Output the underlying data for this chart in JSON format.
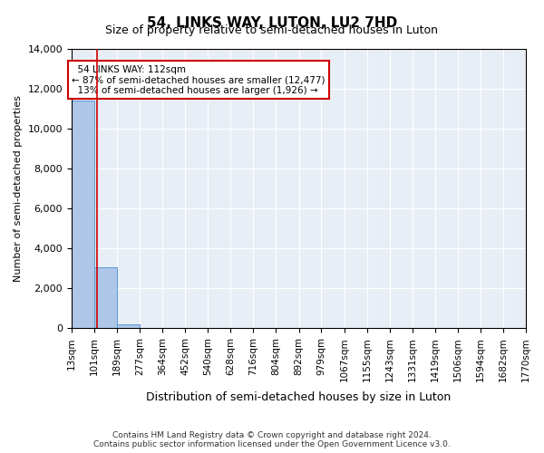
{
  "title": "54, LINKS WAY, LUTON, LU2 7HD",
  "subtitle": "Size of property relative to semi-detached houses in Luton",
  "xlabel": "Distribution of semi-detached houses by size in Luton",
  "ylabel": "Number of semi-detached properties",
  "bar_color": "#aec6e8",
  "bar_edge_color": "#5b9bd5",
  "background_color": "#e8eef5",
  "grid_color": "#ffffff",
  "property_size": 112,
  "property_label": "54 LINKS WAY: 112sqm",
  "smaller_pct": 87,
  "smaller_count": "12,477",
  "larger_pct": 13,
  "larger_count": "1,926",
  "annotation_box_color": "#cc0000",
  "property_line_color": "#cc0000",
  "bin_edges": [
    13,
    101,
    189,
    277,
    364,
    452,
    540,
    628,
    716,
    804,
    892,
    979,
    1067,
    1155,
    1243,
    1331,
    1419,
    1506,
    1594,
    1682,
    1770
  ],
  "bin_labels": [
    "13sqm",
    "101sqm",
    "189sqm",
    "277sqm",
    "364sqm",
    "452sqm",
    "540sqm",
    "628sqm",
    "716sqm",
    "804sqm",
    "892sqm",
    "979sqm",
    "1067sqm",
    "1155sqm",
    "1243sqm",
    "1331sqm",
    "1419sqm",
    "1506sqm",
    "1594sqm",
    "1682sqm",
    "1770sqm"
  ],
  "counts": [
    11400,
    3050,
    200,
    0,
    0,
    0,
    0,
    0,
    0,
    0,
    0,
    0,
    0,
    0,
    0,
    0,
    0,
    0,
    0,
    0
  ],
  "ylim": [
    0,
    14000
  ],
  "yticks": [
    0,
    2000,
    4000,
    6000,
    8000,
    10000,
    12000,
    14000
  ],
  "footer_line1": "Contains HM Land Registry data © Crown copyright and database right 2024.",
  "footer_line2": "Contains public sector information licensed under the Open Government Licence v3.0."
}
